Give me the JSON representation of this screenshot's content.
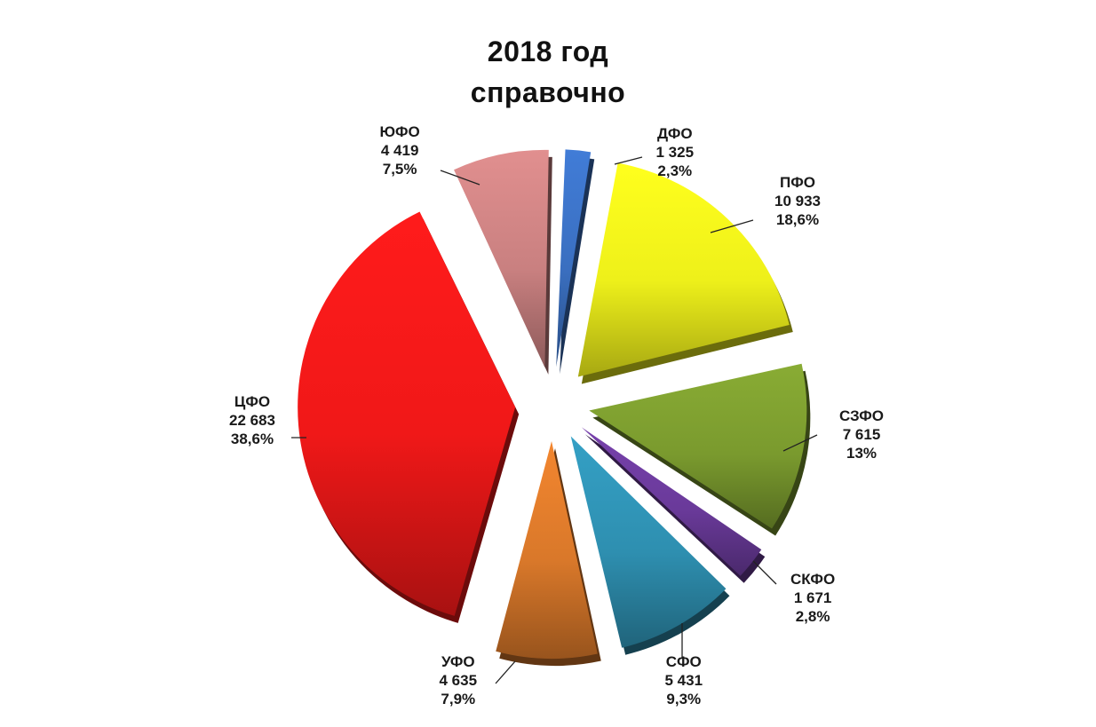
{
  "chart_data": {
    "type": "pie",
    "title": "2018 год",
    "subtitle": "справочно",
    "slices": [
      {
        "name": "ДФО",
        "value": 1325,
        "value_label": "1 325",
        "percent_label": "2,3%",
        "color": "#3a6fc0"
      },
      {
        "name": "ПФО",
        "value": 10933,
        "value_label": "10 933",
        "percent_label": "18,6%",
        "color": "#eef01a"
      },
      {
        "name": "СЗФО",
        "value": 7615,
        "value_label": "7 615",
        "percent_label": "13%",
        "color": "#7a9a2e"
      },
      {
        "name": "СКФО",
        "value": 1671,
        "value_label": "1 671",
        "percent_label": "2,8%",
        "color": "#6a3a9a"
      },
      {
        "name": "СФО",
        "value": 5431,
        "value_label": "5 431",
        "percent_label": "9,3%",
        "color": "#2e8fb0"
      },
      {
        "name": "УФО",
        "value": 4635,
        "value_label": "4 635",
        "percent_label": "7,9%",
        "color": "#d9782a"
      },
      {
        "name": "ЦФО",
        "value": 22683,
        "value_label": "22 683",
        "percent_label": "38,6%",
        "color": "#f01818"
      },
      {
        "name": "ЮФО",
        "value": 4419,
        "value_label": "4 419",
        "percent_label": "7,5%",
        "color": "#c98080"
      }
    ]
  }
}
